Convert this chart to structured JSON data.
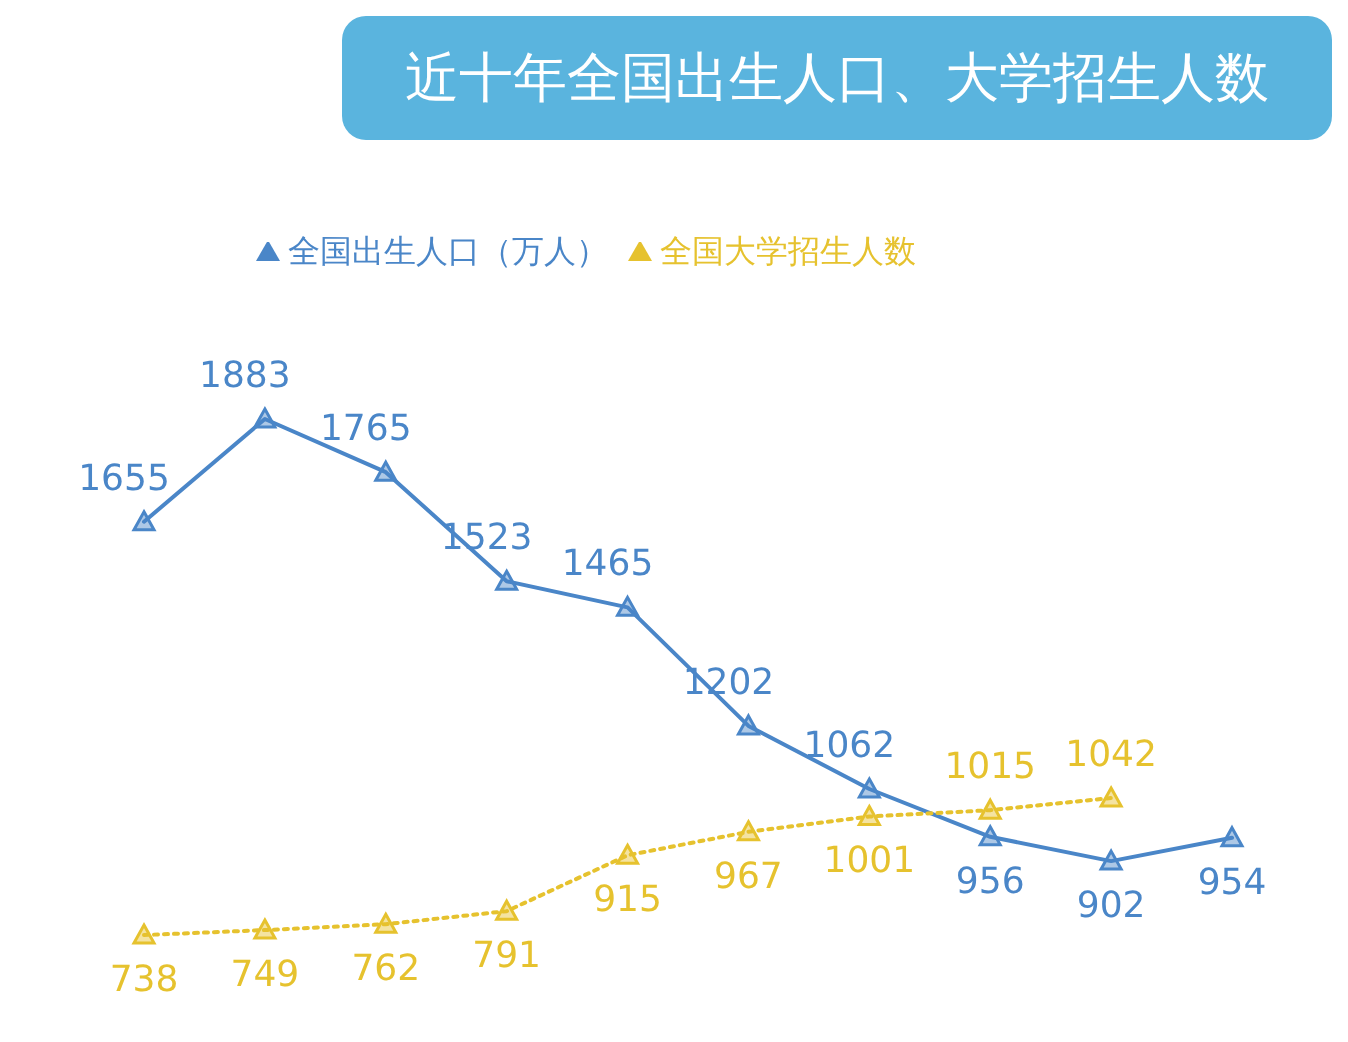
{
  "chart_data": {
    "type": "line",
    "title": "近十年全国出生人口、大学招生人数",
    "categories": [
      null,
      null,
      null,
      null,
      null,
      null,
      null,
      null,
      null,
      null
    ],
    "series": [
      {
        "name": "全国出生人口（万人）",
        "color": "#4a86c8",
        "values": [
          1655,
          1883,
          1765,
          1523,
          1465,
          1202,
          1062,
          956,
          902,
          954
        ],
        "line_style": "solid"
      },
      {
        "name": "全国大学招生人数",
        "color": "#e6c22e",
        "values": [
          738,
          749,
          762,
          791,
          915,
          967,
          1001,
          1015,
          1042,
          null
        ],
        "line_style": "dotted"
      }
    ],
    "marker": "triangle",
    "data_labels": true,
    "legend": "top",
    "grid": false
  }
}
